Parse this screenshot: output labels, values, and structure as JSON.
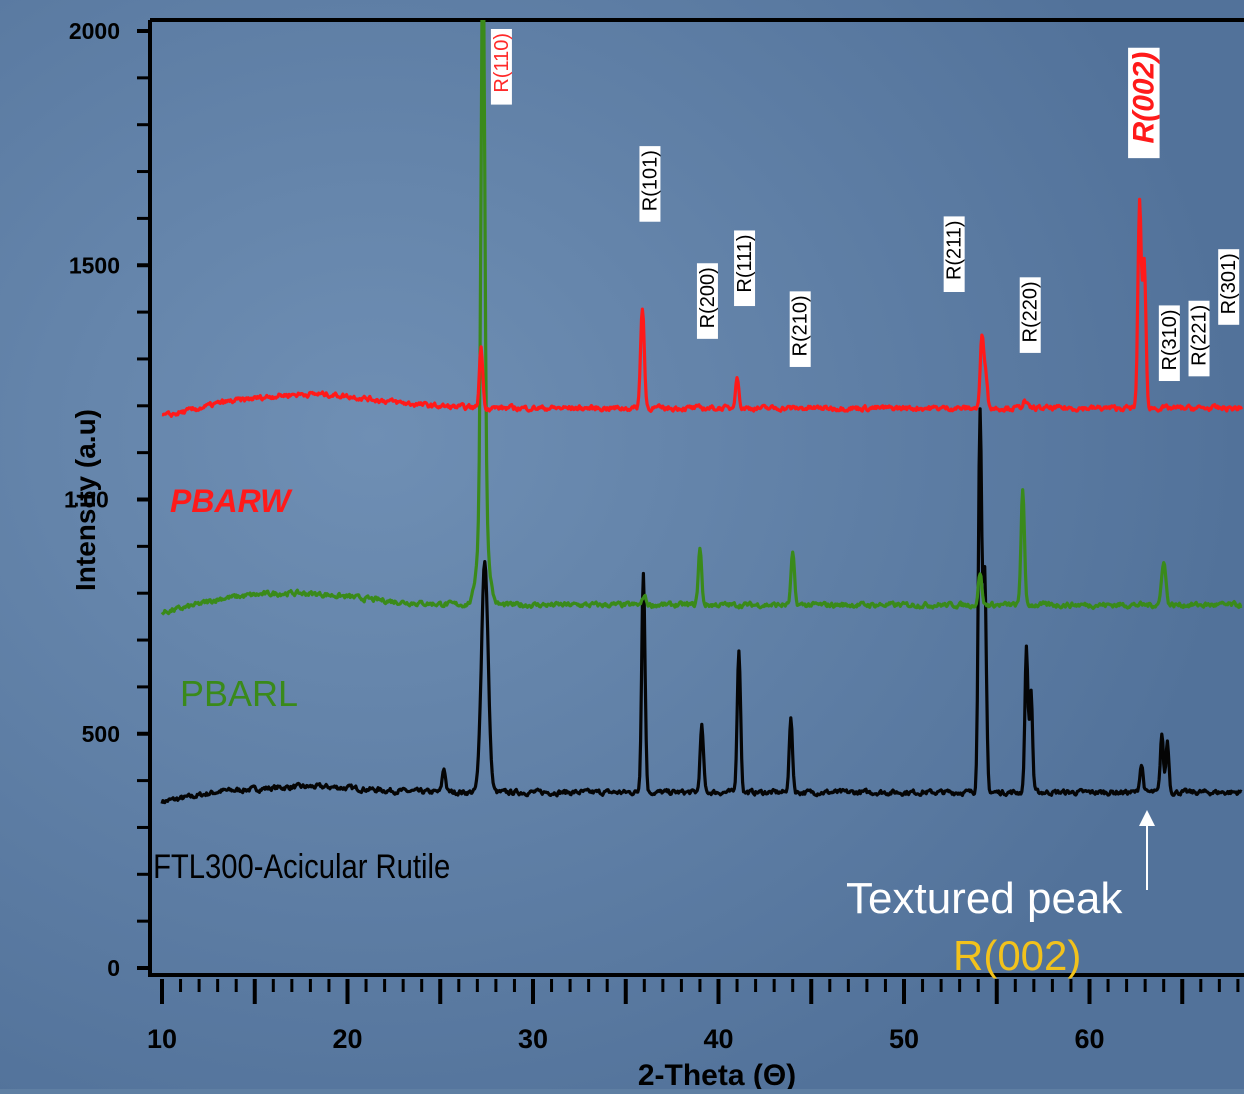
{
  "chart_data": {
    "type": "line",
    "xlabel": "2-Theta (Θ)",
    "ylabel": "Intensity (a.u)",
    "xlim": [
      10,
      68
    ],
    "ylim": [
      0,
      2000
    ],
    "x_ticks": [
      "10",
      "20",
      "30",
      "40",
      "50",
      "60"
    ],
    "y_ticks": [
      "0",
      "500",
      "1500",
      "2000"
    ],
    "y_tick_partial": "1 00",
    "series": [
      {
        "name": "PBARW",
        "color": "#ff1a1a",
        "baseline": 1195,
        "hump": {
          "center": 18,
          "width": 5,
          "height": 30
        },
        "peaks": [
          [
            27.2,
            130,
            0.2
          ],
          [
            35.9,
            215,
            0.22
          ],
          [
            41.0,
            70,
            0.2
          ],
          [
            54.2,
            150,
            0.2
          ],
          [
            54.4,
            80,
            0.2
          ],
          [
            56.5,
            15,
            0.25
          ],
          [
            62.7,
            440,
            0.2
          ],
          [
            62.95,
            310,
            0.2
          ]
        ]
      },
      {
        "name": "PBARL",
        "color": "#3a8a1a",
        "baseline": 775,
        "hump": {
          "center": 17,
          "width": 5,
          "height": 25
        },
        "peaks": [
          [
            27.3,
            1225,
            0.22
          ],
          [
            27.3,
            200,
            0.6
          ],
          [
            36.0,
            20,
            0.2
          ],
          [
            39.0,
            120,
            0.2
          ],
          [
            44.0,
            110,
            0.2
          ],
          [
            54.1,
            70,
            0.2
          ],
          [
            56.4,
            250,
            0.2
          ],
          [
            64.0,
            95,
            0.25
          ]
        ]
      },
      {
        "name": "FTL300-Acicular Rutile",
        "color": "#050505",
        "baseline": 375,
        "hump": {
          "center": 18,
          "width": 4,
          "height": 12
        },
        "peaks": [
          [
            25.2,
            50,
            0.2
          ],
          [
            27.4,
            495,
            0.4
          ],
          [
            35.95,
            470,
            0.2
          ],
          [
            39.1,
            140,
            0.2
          ],
          [
            41.1,
            305,
            0.2
          ],
          [
            43.9,
            155,
            0.2
          ],
          [
            54.1,
            815,
            0.2
          ],
          [
            54.35,
            460,
            0.2
          ],
          [
            56.6,
            310,
            0.18
          ],
          [
            56.85,
            215,
            0.18
          ],
          [
            62.8,
            60,
            0.2
          ],
          [
            63.9,
            125,
            0.18
          ],
          [
            64.2,
            110,
            0.18
          ]
        ]
      }
    ],
    "peak_labels": [
      {
        "text": "R(110)",
        "x": 27.3,
        "y": 2000,
        "color": "#ff2a2a",
        "bold": false
      },
      {
        "text": "R(101)",
        "x": 35.9,
        "y": 1750,
        "color": "#000000",
        "bold": false
      },
      {
        "text": "R(200)",
        "x": 39.0,
        "y": 1500,
        "color": "#000000",
        "bold": false
      },
      {
        "text": "R(111)",
        "x": 41.0,
        "y": 1570,
        "color": "#000000",
        "bold": false
      },
      {
        "text": "R(210)",
        "x": 44.0,
        "y": 1440,
        "color": "#000000",
        "bold": false
      },
      {
        "text": "R(211)",
        "x": 52.3,
        "y": 1600,
        "color": "#000000",
        "bold": false
      },
      {
        "text": "R(220)",
        "x": 56.4,
        "y": 1470,
        "color": "#000000",
        "bold": false
      },
      {
        "text": "R(002)",
        "x": 62.7,
        "y": 1960,
        "color": "#ff1a1a",
        "bold": true
      },
      {
        "text": "R(310)",
        "x": 63.9,
        "y": 1410,
        "color": "#000000",
        "bold": false
      },
      {
        "text": "R(221)",
        "x": 65.5,
        "y": 1420,
        "color": "#000000",
        "bold": false
      },
      {
        "text": "R(301)",
        "x": 67.1,
        "y": 1530,
        "color": "#000000",
        "bold": false
      }
    ],
    "series_labels": [
      {
        "text": "PBARW",
        "color": "#ff1a1a",
        "bold": true,
        "italic": true
      },
      {
        "text": "PBARL",
        "color": "#3a8a1a",
        "bold": false,
        "italic": false
      },
      {
        "text": "FTL300-Acicular Rutile",
        "color": "#000000",
        "bold": false,
        "italic": false
      }
    ],
    "annotation": {
      "text": "Textured peak",
      "sub_text": "R(002)",
      "sub_color": "#f2c21c",
      "arrow_x": 63.1
    }
  }
}
